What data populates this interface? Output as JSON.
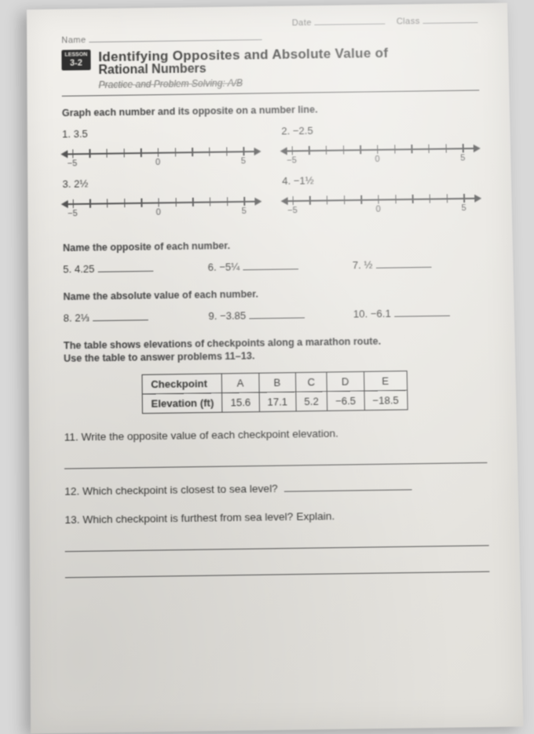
{
  "header": {
    "date_label": "Date",
    "class_label": "Class",
    "name_label": "Name",
    "lesson": "LESSON",
    "lesson_num": "3-2",
    "title_l1": "Identifying Opposites and Absolute Value of",
    "title_l2": "Rational Numbers",
    "subtitle": "Practice and Problem Solving: A/B"
  },
  "sec1": {
    "instr": "Graph each number and its opposite on a number line.",
    "q1": "1. 3.5",
    "q2": "2. −2.5",
    "q3": "3. 2½",
    "q4": "4. −1½",
    "numberline": {
      "ticks": 11,
      "labels": {
        "0": "−5",
        "5": "0",
        "10": "5"
      },
      "color": "#555555"
    }
  },
  "sec2": {
    "instr": "Name the opposite of each number.",
    "q5": "5. 4.25",
    "q6": "6. −5¼",
    "q7": "7. ½"
  },
  "sec3": {
    "instr": "Name the absolute value of each number.",
    "q8": "8. 2⅓",
    "q9": "9. −3.85",
    "q10": "10. −6.1"
  },
  "sec4": {
    "intro1": "The table shows elevations of checkpoints along a marathon route.",
    "intro2": "Use the table to answer problems 11–13.",
    "table": {
      "row_header": "Checkpoint",
      "row2_header": "Elevation (ft)",
      "cols": [
        "A",
        "B",
        "C",
        "D",
        "E"
      ],
      "vals": [
        "15.6",
        "17.1",
        "5.2",
        "−6.5",
        "−18.5"
      ]
    },
    "q11": "11. Write the opposite value of each checkpoint elevation.",
    "q12": "12. Which checkpoint is closest to sea level?",
    "q13": "13. Which checkpoint is furthest from sea level? Explain."
  },
  "colors": {
    "text": "#3a3a38",
    "rule": "#555555",
    "page_bg": "#e9e7e2"
  }
}
